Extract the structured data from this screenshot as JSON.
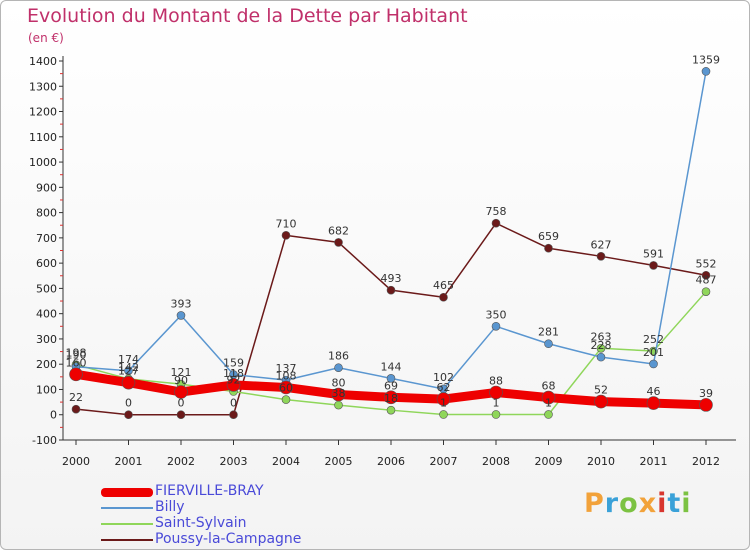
{
  "title": "Evolution du Montant de la Dette par Habitant",
  "unit": "(en €)",
  "brand": {
    "text": "Proxiti",
    "colors": [
      "#f2a23a",
      "#3aa1d8",
      "#7cc242",
      "#f2a23a",
      "#d8362f",
      "#3aa1d8",
      "#7cc242"
    ]
  },
  "chart_data": {
    "type": "line",
    "x": [
      "2000",
      "2001",
      "2002",
      "2003",
      "2004",
      "2005",
      "2006",
      "2007",
      "2008",
      "2009",
      "2010",
      "2011",
      "2012"
    ],
    "ylim": [
      -100,
      1400
    ],
    "yticks": [
      -100,
      0,
      100,
      200,
      300,
      400,
      500,
      600,
      700,
      800,
      900,
      1000,
      1100,
      1200,
      1300,
      1400
    ],
    "grid": false,
    "legend_position": "bottom-left",
    "series": [
      {
        "name": "Poussy-la-Campagne",
        "color": "#6b1a1a",
        "width": 1.5,
        "marker": 4,
        "values": [
          22,
          0,
          0,
          0,
          710,
          682,
          493,
          465,
          758,
          659,
          627,
          591,
          552
        ],
        "labels": [
          "22",
          "0",
          "0",
          "0",
          "710",
          "682",
          "493",
          "465",
          "758",
          "659",
          "627",
          "591",
          "552"
        ]
      },
      {
        "name": "Saint-Sylvain",
        "color": "#8fd65a",
        "width": 1.5,
        "marker": 4,
        "values": [
          198,
          142,
          121,
          92,
          60,
          38,
          18,
          1,
          1,
          1,
          263,
          252,
          487
        ],
        "labels": [
          "198",
          "142",
          "121",
          "92",
          "60",
          "38",
          "18",
          "1",
          "1",
          "1",
          "263",
          "252",
          "487"
        ]
      },
      {
        "name": "Billy",
        "color": "#5a96d0",
        "width": 1.5,
        "marker": 4,
        "values": [
          190,
          174,
          393,
          159,
          137,
          186,
          144,
          102,
          350,
          281,
          228,
          201,
          1359
        ],
        "labels": [
          "190",
          "174",
          "393",
          "159",
          "137",
          "186",
          "144",
          "102",
          "350",
          "281",
          "228",
          "201",
          "1359"
        ]
      },
      {
        "name": "FIERVILLE-BRAY",
        "color": "#ee0000",
        "width": 9,
        "marker": 6.5,
        "values": [
          160,
          127,
          90,
          118,
          108,
          80,
          69,
          62,
          88,
          68,
          52,
          46,
          39
        ],
        "labels": [
          "160",
          "127",
          "90",
          "118",
          "108",
          "80",
          "69",
          "62",
          "88",
          "68",
          "52",
          "46",
          "39"
        ]
      }
    ]
  }
}
